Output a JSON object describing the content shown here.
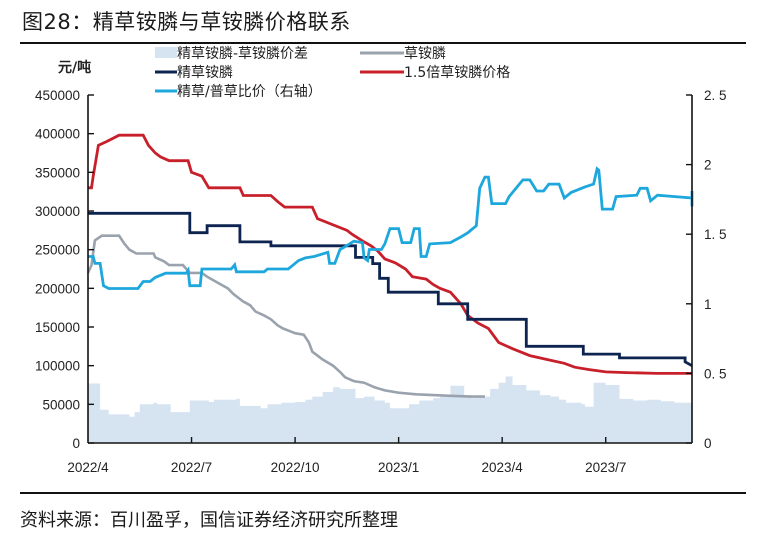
{
  "header": {
    "title": "图28：精草铵膦与草铵膦价格联系"
  },
  "footer": {
    "source": "资料来源：百川盈孚，国信证券经济研究所整理"
  },
  "colors": {
    "spread_fill": "#d6e4f2",
    "glufosinate": "#9aa3ad",
    "refined": "#0d2350",
    "x1_5": "#c8202b",
    "ratio": "#1ea7dc"
  },
  "chart_data": {
    "type": "line",
    "title": "精草铵膦与草铵膦价格联系",
    "ylabel": "元/吨",
    "y2label": "精草/普草比价（右轴）",
    "ylim": [
      0,
      450000
    ],
    "y2lim": [
      0,
      2.5
    ],
    "yticks": [
      "450000",
      "400000",
      "350000",
      "300000",
      "250000",
      "200000",
      "150000",
      "100000",
      "50000",
      "0"
    ],
    "y2ticks": [
      "2.5",
      "2",
      "1.5",
      "1",
      "0.5",
      "0"
    ],
    "xticks": [
      "2022/4",
      "2022/7",
      "2022/10",
      "2023/1",
      "2023/4",
      "2023/7"
    ],
    "x_unit": "months since 2022/4 (fractional)",
    "x_end": 8.5,
    "legend": [
      {
        "key": "spread",
        "label": "精草铵膦-草铵膦价差",
        "style": "area"
      },
      {
        "key": "glufosinate",
        "label": "草铵膦",
        "style": "line"
      },
      {
        "key": "refined",
        "label": "精草铵膦",
        "style": "line"
      },
      {
        "key": "x1_5",
        "label": "1.5倍草铵膦价格",
        "style": "line"
      },
      {
        "key": "ratio",
        "label": "精草/普草比价（右轴）",
        "style": "line"
      }
    ],
    "series": [
      {
        "name": "草铵膦",
        "key": "glufosinate",
        "axis": "left",
        "points": [
          [
            0,
            220000
          ],
          [
            0.1,
            230000
          ],
          [
            0.2,
            262000
          ],
          [
            0.4,
            268000
          ],
          [
            0.9,
            268000
          ],
          [
            1.05,
            258000
          ],
          [
            1.2,
            250000
          ],
          [
            1.4,
            245000
          ],
          [
            1.9,
            245000
          ],
          [
            1.95,
            240000
          ],
          [
            2.2,
            235000
          ],
          [
            2.35,
            230000
          ],
          [
            2.75,
            230000
          ],
          [
            2.95,
            220000
          ],
          [
            3.3,
            220000
          ],
          [
            3.45,
            215000
          ],
          [
            3.65,
            210000
          ],
          [
            3.85,
            205000
          ],
          [
            4.05,
            200000
          ],
          [
            4.2,
            193000
          ],
          [
            4.35,
            188000
          ],
          [
            4.5,
            183000
          ],
          [
            4.7,
            178000
          ],
          [
            4.85,
            170000
          ],
          [
            5.1,
            165000
          ],
          [
            5.3,
            160000
          ],
          [
            5.5,
            152000
          ],
          [
            5.65,
            148000
          ],
          [
            6.0,
            142000
          ],
          [
            6.25,
            140000
          ],
          [
            6.4,
            130000
          ],
          [
            6.5,
            118000
          ],
          [
            6.8,
            108000
          ],
          [
            7.1,
            100000
          ],
          [
            7.3,
            92000
          ],
          [
            7.45,
            85000
          ],
          [
            7.7,
            80000
          ],
          [
            8.0,
            78000
          ],
          [
            8.3,
            72000
          ],
          [
            8.6,
            68000
          ],
          [
            9.0,
            65000
          ],
          [
            9.5,
            63000
          ],
          [
            10.0,
            62000
          ],
          [
            10.5,
            61000
          ],
          [
            11.1,
            60000
          ],
          [
            11.5,
            60000
          ]
        ]
      },
      {
        "name": "精草铵膦",
        "key": "refined",
        "axis": "left",
        "points": [
          [
            0,
            297000
          ],
          [
            2.95,
            297000
          ],
          [
            2.95,
            272000
          ],
          [
            3.45,
            272000
          ],
          [
            3.45,
            281000
          ],
          [
            4.4,
            281000
          ],
          [
            4.4,
            260000
          ],
          [
            5.3,
            260000
          ],
          [
            5.3,
            255000
          ],
          [
            7.75,
            255000
          ],
          [
            7.75,
            240000
          ],
          [
            8.25,
            240000
          ],
          [
            8.25,
            232000
          ],
          [
            8.45,
            232000
          ],
          [
            8.45,
            213000
          ],
          [
            8.7,
            213000
          ],
          [
            8.7,
            195000
          ],
          [
            10.15,
            195000
          ],
          [
            10.15,
            180000
          ],
          [
            11.0,
            180000
          ],
          [
            11.0,
            160000
          ],
          [
            12.7,
            160000
          ],
          [
            12.7,
            125000
          ],
          [
            14.35,
            125000
          ],
          [
            14.35,
            115000
          ],
          [
            15.4,
            115000
          ],
          [
            15.4,
            110000
          ],
          [
            17.3,
            110000
          ],
          [
            17.3,
            105000
          ],
          [
            17.5,
            100000
          ]
        ]
      },
      {
        "name": "1.5倍草铵膦价格",
        "key": "x1_5",
        "axis": "left",
        "points": [
          [
            0,
            330000
          ],
          [
            0.1,
            330000
          ],
          [
            0.15,
            345000
          ],
          [
            0.3,
            385000
          ],
          [
            0.55,
            390000
          ],
          [
            0.9,
            398000
          ],
          [
            1.6,
            398000
          ],
          [
            1.75,
            385000
          ],
          [
            1.95,
            375000
          ],
          [
            2.1,
            370000
          ],
          [
            2.35,
            365000
          ],
          [
            2.9,
            365000
          ],
          [
            3.0,
            350000
          ],
          [
            3.3,
            345000
          ],
          [
            3.5,
            330000
          ],
          [
            4.4,
            330000
          ],
          [
            4.5,
            320000
          ],
          [
            5.3,
            320000
          ],
          [
            5.5,
            312000
          ],
          [
            5.7,
            305000
          ],
          [
            6.5,
            305000
          ],
          [
            6.65,
            290000
          ],
          [
            7.5,
            275000
          ],
          [
            7.65,
            270000
          ],
          [
            8.0,
            260000
          ],
          [
            8.2,
            255000
          ],
          [
            8.4,
            248000
          ],
          [
            8.6,
            238000
          ],
          [
            8.9,
            233000
          ],
          [
            9.2,
            225000
          ],
          [
            9.4,
            215000
          ],
          [
            9.8,
            212000
          ],
          [
            10.0,
            205000
          ],
          [
            10.2,
            200000
          ],
          [
            10.5,
            195000
          ],
          [
            10.8,
            180000
          ],
          [
            11.0,
            165000
          ],
          [
            11.3,
            155000
          ],
          [
            11.6,
            148000
          ],
          [
            11.9,
            130000
          ],
          [
            12.3,
            122000
          ],
          [
            12.8,
            113000
          ],
          [
            13.3,
            108000
          ],
          [
            13.8,
            103000
          ],
          [
            14.1,
            98000
          ],
          [
            14.5,
            95000
          ],
          [
            15.0,
            92000
          ],
          [
            15.6,
            91000
          ],
          [
            16.5,
            90000
          ],
          [
            17.5,
            90000
          ]
        ]
      },
      {
        "name": "精草/普草比价（右轴）",
        "key": "ratio",
        "axis": "right",
        "points": [
          [
            0,
            1.34
          ],
          [
            0.15,
            1.34
          ],
          [
            0.2,
            1.29
          ],
          [
            0.35,
            1.29
          ],
          [
            0.45,
            1.13
          ],
          [
            0.6,
            1.11
          ],
          [
            1.0,
            1.11
          ],
          [
            1.45,
            1.11
          ],
          [
            1.6,
            1.16
          ],
          [
            1.8,
            1.16
          ],
          [
            1.95,
            1.19
          ],
          [
            2.25,
            1.22
          ],
          [
            2.85,
            1.22
          ],
          [
            2.9,
            1.24
          ],
          [
            2.95,
            1.13
          ],
          [
            3.25,
            1.13
          ],
          [
            3.3,
            1.25
          ],
          [
            3.55,
            1.25
          ],
          [
            4.15,
            1.25
          ],
          [
            4.25,
            1.28
          ],
          [
            4.3,
            1.23
          ],
          [
            4.7,
            1.23
          ],
          [
            5.1,
            1.23
          ],
          [
            5.2,
            1.25
          ],
          [
            5.6,
            1.25
          ],
          [
            5.8,
            1.25
          ],
          [
            5.95,
            1.28
          ],
          [
            6.1,
            1.31
          ],
          [
            6.3,
            1.33
          ],
          [
            6.55,
            1.34
          ],
          [
            6.95,
            1.37
          ],
          [
            7.0,
            1.29
          ],
          [
            7.15,
            1.29
          ],
          [
            7.3,
            1.39
          ],
          [
            7.45,
            1.41
          ],
          [
            7.7,
            1.45
          ],
          [
            7.95,
            1.44
          ],
          [
            8.0,
            1.33
          ],
          [
            8.1,
            1.31
          ],
          [
            8.15,
            1.39
          ],
          [
            8.5,
            1.39
          ],
          [
            8.6,
            1.43
          ],
          [
            8.75,
            1.54
          ],
          [
            9.0,
            1.54
          ],
          [
            9.1,
            1.44
          ],
          [
            9.35,
            1.44
          ],
          [
            9.45,
            1.54
          ],
          [
            9.6,
            1.54
          ],
          [
            9.65,
            1.34
          ],
          [
            9.8,
            1.34
          ],
          [
            9.9,
            1.43
          ],
          [
            10.5,
            1.44
          ],
          [
            10.8,
            1.48
          ],
          [
            11.0,
            1.51
          ],
          [
            11.1,
            1.53
          ],
          [
            11.25,
            1.56
          ],
          [
            11.35,
            1.83
          ],
          [
            11.5,
            1.91
          ],
          [
            11.6,
            1.91
          ],
          [
            11.7,
            1.72
          ],
          [
            12.1,
            1.72
          ],
          [
            12.2,
            1.77
          ],
          [
            12.6,
            1.89
          ],
          [
            12.8,
            1.89
          ],
          [
            13.0,
            1.81
          ],
          [
            13.2,
            1.81
          ],
          [
            13.35,
            1.86
          ],
          [
            13.65,
            1.86
          ],
          [
            13.8,
            1.76
          ],
          [
            14.0,
            1.8
          ],
          [
            14.4,
            1.84
          ],
          [
            14.65,
            1.86
          ],
          [
            14.75,
            1.97
          ],
          [
            14.8,
            1.96
          ],
          [
            14.9,
            1.68
          ],
          [
            15.2,
            1.68
          ],
          [
            15.3,
            1.77
          ],
          [
            15.9,
            1.78
          ],
          [
            16.0,
            1.83
          ],
          [
            16.2,
            1.83
          ],
          [
            16.3,
            1.74
          ],
          [
            16.5,
            1.78
          ],
          [
            17.5,
            1.76
          ],
          [
            17.5,
            1.76
          ],
          [
            18.3,
            1.81
          ],
          [
            18.4,
            1.76
          ],
          [
            19.3,
            1.76
          ],
          [
            19.5,
            1.7
          ],
          [
            17.5,
            1.7
          ]
        ]
      },
      {
        "name": "精草铵膦-草铵膦价差",
        "key": "spread",
        "axis": "left",
        "type": "area",
        "points": [
          [
            0,
            77000
          ],
          [
            0.2,
            77000
          ],
          [
            0.35,
            43000
          ],
          [
            0.6,
            37000
          ],
          [
            1.2,
            34000
          ],
          [
            1.35,
            40000
          ],
          [
            1.5,
            50000
          ],
          [
            1.9,
            52000
          ],
          [
            2.0,
            50000
          ],
          [
            2.4,
            40000
          ],
          [
            2.8,
            40000
          ],
          [
            2.95,
            55000
          ],
          [
            3.5,
            53000
          ],
          [
            3.65,
            56000
          ],
          [
            4.3,
            57000
          ],
          [
            4.4,
            48000
          ],
          [
            5.0,
            45000
          ],
          [
            5.2,
            50000
          ],
          [
            5.6,
            52000
          ],
          [
            6.0,
            53000
          ],
          [
            6.3,
            56000
          ],
          [
            6.5,
            60000
          ],
          [
            6.8,
            66000
          ],
          [
            7.1,
            72000
          ],
          [
            7.3,
            70000
          ],
          [
            7.6,
            70000
          ],
          [
            7.75,
            58000
          ],
          [
            8.0,
            60000
          ],
          [
            8.3,
            55000
          ],
          [
            8.6,
            52000
          ],
          [
            8.75,
            45000
          ],
          [
            9.05,
            45000
          ],
          [
            9.3,
            50000
          ],
          [
            9.6,
            55000
          ],
          [
            10.0,
            58000
          ],
          [
            10.2,
            60000
          ],
          [
            10.5,
            74000
          ],
          [
            10.9,
            62000
          ],
          [
            11.1,
            58000
          ],
          [
            11.3,
            60000
          ],
          [
            11.65,
            70000
          ],
          [
            11.9,
            78000
          ],
          [
            12.1,
            86000
          ],
          [
            12.3,
            75000
          ],
          [
            12.7,
            68000
          ],
          [
            13.1,
            62000
          ],
          [
            13.4,
            60000
          ],
          [
            13.65,
            56000
          ],
          [
            13.85,
            52000
          ],
          [
            14.3,
            50000
          ],
          [
            14.4,
            47000
          ],
          [
            14.6,
            47000
          ],
          [
            14.65,
            78000
          ],
          [
            15.0,
            75000
          ],
          [
            15.4,
            57000
          ],
          [
            15.8,
            55000
          ],
          [
            16.2,
            56000
          ],
          [
            16.6,
            54000
          ],
          [
            17.0,
            52000
          ],
          [
            17.5,
            50000
          ]
        ]
      }
    ]
  }
}
